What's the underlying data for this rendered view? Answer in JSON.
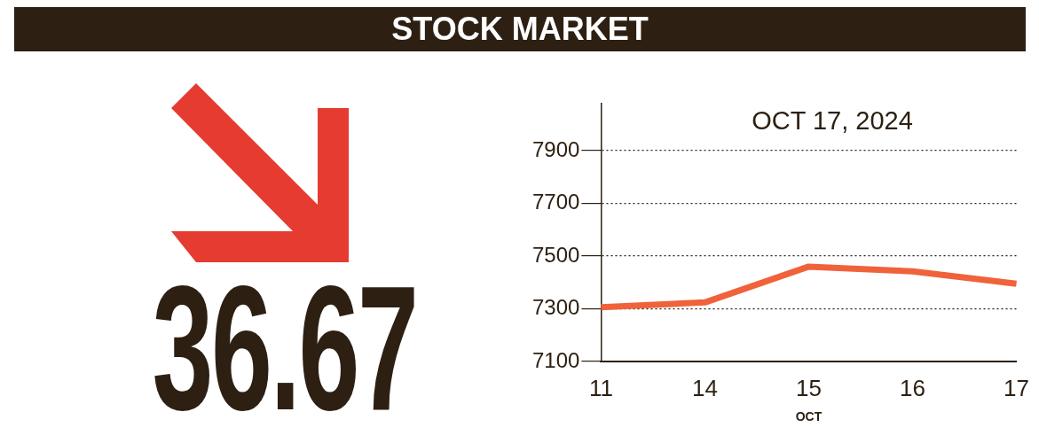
{
  "chart_data": {
    "type": "line",
    "title": "STOCK MARKET",
    "subtitle": "OCT 17, 2024",
    "xlabel": "OCT",
    "annotations": [
      "36.67"
    ],
    "categories": [
      "11",
      "14",
      "15",
      "16",
      "17"
    ],
    "series": [
      {
        "color": "#f0623a",
        "values": [
          7306,
          7324,
          7460,
          7442,
          7395
        ]
      }
    ],
    "ylim": [
      7100,
      8080
    ],
    "yticks": [
      7100,
      7300,
      7500,
      7700,
      7900
    ],
    "grid": "y"
  }
}
